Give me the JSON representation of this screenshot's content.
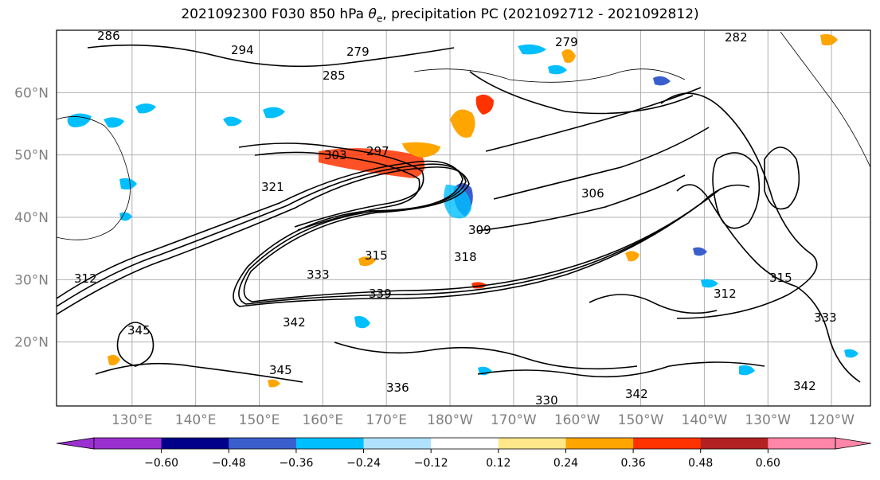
{
  "figure": {
    "title_prefix": "2021092300 F030 850 hPa ",
    "title_symbol": "θ",
    "title_sub": "e",
    "title_suffix": ", precipitation PC (2021092712 - 2021092812)"
  },
  "map": {
    "lat_labels": [
      "20°N",
      "30°N",
      "40°N",
      "50°N",
      "60°N"
    ],
    "lon_labels": [
      "130°E",
      "140°E",
      "150°E",
      "160°E",
      "170°E",
      "180°W",
      "170°W",
      "160°W",
      "150°W",
      "140°W",
      "130°W",
      "120°W"
    ],
    "lat_values": [
      20,
      30,
      40,
      50,
      60
    ],
    "lon_values": [
      130,
      140,
      150,
      160,
      170,
      180,
      190,
      200,
      210,
      220,
      230,
      240
    ],
    "contour_labels": [
      "286",
      "294",
      "279",
      "279",
      "282",
      "303",
      "297",
      "285",
      "306",
      "309",
      "312",
      "318",
      "315",
      "321",
      "333",
      "339",
      "345",
      "345",
      "342",
      "336",
      "330",
      "342",
      "333",
      "312",
      "315",
      "342"
    ]
  },
  "colorbar": {
    "tick_labels": [
      "−0.60",
      "−0.48",
      "−0.36",
      "−0.24",
      "−0.12",
      "0.12",
      "0.24",
      "0.36",
      "0.48",
      "0.60"
    ],
    "colors": [
      "#9b30d0",
      "#00008b",
      "#3a5fcd",
      "#00bfff",
      "#b0e2ff",
      "#ffffff",
      "#ffe78a",
      "#ffa500",
      "#ff3300",
      "#b22222",
      "#ff86a8",
      "#ff86a8"
    ]
  }
}
